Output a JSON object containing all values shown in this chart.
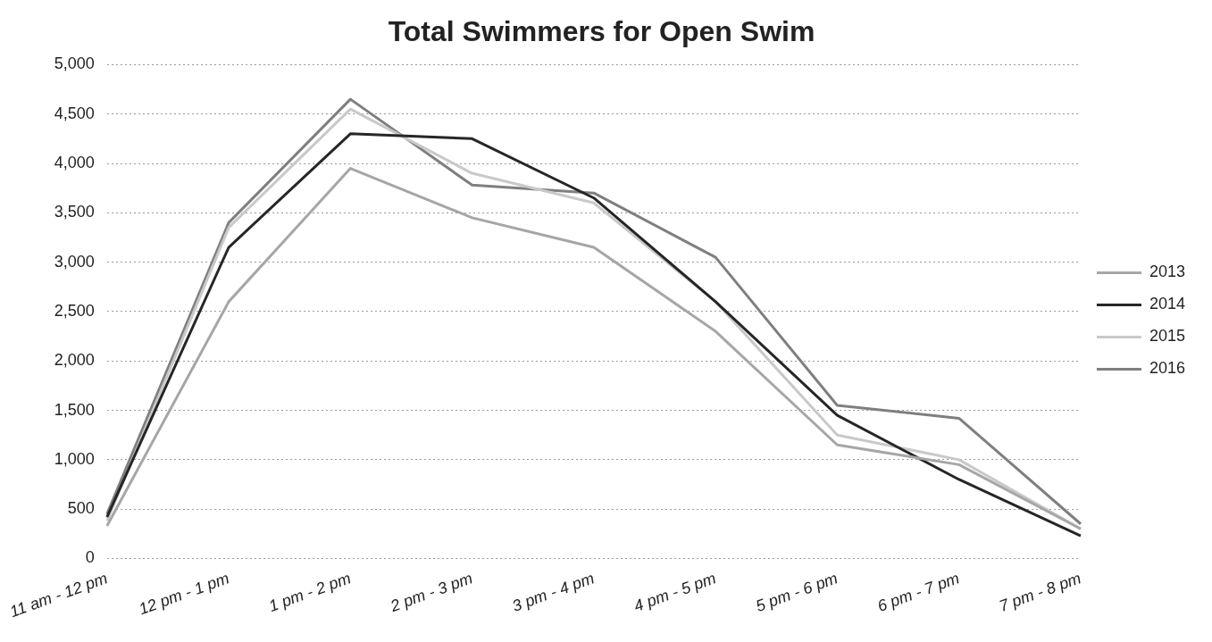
{
  "chart_data": {
    "type": "line",
    "title": "Total Swimmers for Open Swim",
    "categories": [
      "11 am - 12 pm",
      "12 pm - 1 pm",
      "1 pm - 2 pm",
      "2 pm - 3 pm",
      "3 pm - 4 pm",
      "4 pm - 5 pm",
      "5 pm - 6 pm",
      "6 pm - 7 pm",
      "7 pm - 8 pm"
    ],
    "series": [
      {
        "name": "2013",
        "color": "#a6a6a6",
        "values": [
          330,
          2600,
          3950,
          3450,
          3150,
          2300,
          1150,
          950,
          300
        ]
      },
      {
        "name": "2014",
        "color": "#262626",
        "values": [
          420,
          3150,
          4300,
          4250,
          3650,
          2600,
          1450,
          800,
          230
        ]
      },
      {
        "name": "2015",
        "color": "#c9c9c9",
        "values": [
          380,
          3350,
          4550,
          3900,
          3600,
          2600,
          1250,
          1000,
          300
        ]
      },
      {
        "name": "2016",
        "color": "#7f7f7f",
        "values": [
          450,
          3400,
          4650,
          3780,
          3700,
          3050,
          1550,
          1420,
          350
        ]
      }
    ],
    "ylim": [
      0,
      5000
    ],
    "yticks": [
      0,
      500,
      {
        "value": 1000,
        "label": "1,000"
      },
      {
        "value": 1500,
        "label": "1,500"
      },
      {
        "value": 2000,
        "label": "2,000"
      },
      {
        "value": 2500,
        "label": "2,500"
      },
      {
        "value": 3000,
        "label": "3,000"
      },
      {
        "value": 3500,
        "label": "3,500"
      },
      {
        "value": 4000,
        "label": "4,000"
      },
      {
        "value": 4500,
        "label": "4,500"
      },
      {
        "value": 5000,
        "label": "5,000"
      }
    ],
    "grid": "y",
    "legend": "right",
    "marker": "none"
  }
}
